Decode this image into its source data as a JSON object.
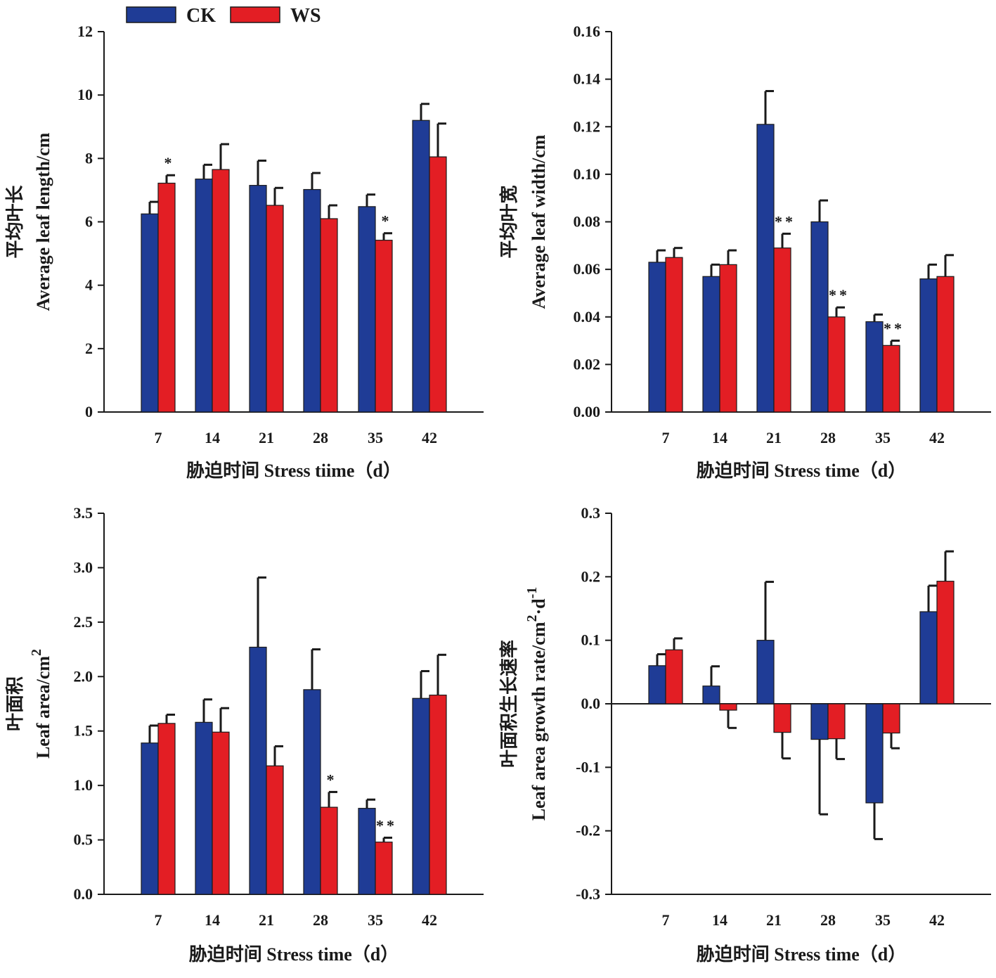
{
  "legend": {
    "items": [
      {
        "label": "CK",
        "color": "#1f3c96"
      },
      {
        "label": "WS",
        "color": "#e31e24"
      }
    ]
  },
  "colors": {
    "ck": "#1f3c96",
    "ws": "#e31e24",
    "axis": "#1a1a1a"
  },
  "chart_data": [
    {
      "type": "bar",
      "categories": [
        "7",
        "14",
        "21",
        "28",
        "35",
        "42"
      ],
      "ylabel_cn": "平均叶长",
      "ylabel_en": "Average leaf length/cm",
      "xlabel": "胁迫时间 Stress tiime（d）",
      "ylim": [
        0,
        12
      ],
      "yticks": [
        "0",
        "2",
        "4",
        "6",
        "8",
        "10",
        "12"
      ],
      "ytick_values": [
        0,
        2,
        4,
        6,
        8,
        10,
        12
      ],
      "series": [
        {
          "name": "CK",
          "values": [
            6.25,
            7.35,
            7.15,
            7.02,
            6.48,
            9.2
          ],
          "errors": [
            0.38,
            0.45,
            0.78,
            0.52,
            0.38,
            0.52
          ]
        },
        {
          "name": "WS",
          "values": [
            7.22,
            7.65,
            6.52,
            6.1,
            5.42,
            8.05
          ],
          "errors": [
            0.25,
            0.8,
            0.55,
            0.42,
            0.22,
            1.05
          ]
        }
      ],
      "significance": [
        {
          "category_index": 0,
          "series": "WS",
          "mark": "*"
        },
        {
          "category_index": 4,
          "series": "WS",
          "mark": "*"
        }
      ]
    },
    {
      "type": "bar",
      "categories": [
        "7",
        "14",
        "21",
        "28",
        "35",
        "42"
      ],
      "ylabel_cn": "平均叶宽",
      "ylabel_en": "Average leaf width/cm",
      "xlabel": "胁迫时间 Stress time（d）",
      "ylim": [
        0,
        0.16
      ],
      "yticks": [
        "0.00",
        "0.02",
        "0.04",
        "0.06",
        "0.08",
        "0.10",
        "0.12",
        "0.14",
        "0.16"
      ],
      "ytick_values": [
        0,
        0.02,
        0.04,
        0.06,
        0.08,
        0.1,
        0.12,
        0.14,
        0.16
      ],
      "series": [
        {
          "name": "CK",
          "values": [
            0.063,
            0.057,
            0.121,
            0.08,
            0.038,
            0.056
          ],
          "errors": [
            0.005,
            0.005,
            0.014,
            0.009,
            0.003,
            0.006
          ]
        },
        {
          "name": "WS",
          "values": [
            0.065,
            0.062,
            0.069,
            0.04,
            0.028,
            0.057
          ],
          "errors": [
            0.004,
            0.006,
            0.006,
            0.004,
            0.002,
            0.009
          ]
        }
      ],
      "significance": [
        {
          "category_index": 2,
          "series": "WS",
          "mark": "**"
        },
        {
          "category_index": 3,
          "series": "WS",
          "mark": "**"
        },
        {
          "category_index": 4,
          "series": "WS",
          "mark": "**"
        }
      ]
    },
    {
      "type": "bar",
      "categories": [
        "7",
        "14",
        "21",
        "28",
        "35",
        "42"
      ],
      "ylabel_cn": "叶面积",
      "ylabel_en": "Leaf area/cm",
      "ylabel_sup": "2",
      "xlabel": "胁迫时间 Stress time（d）",
      "ylim": [
        0,
        3.5
      ],
      "yticks": [
        "0.0",
        "0.5",
        "1.0",
        "1.5",
        "2.0",
        "2.5",
        "3.0",
        "3.5"
      ],
      "ytick_values": [
        0,
        0.5,
        1,
        1.5,
        2,
        2.5,
        3,
        3.5
      ],
      "series": [
        {
          "name": "CK",
          "values": [
            1.39,
            1.58,
            2.27,
            1.88,
            0.79,
            1.8
          ],
          "errors": [
            0.16,
            0.21,
            0.64,
            0.37,
            0.08,
            0.25
          ]
        },
        {
          "name": "WS",
          "values": [
            1.57,
            1.49,
            1.18,
            0.8,
            0.48,
            1.83
          ],
          "errors": [
            0.08,
            0.22,
            0.18,
            0.14,
            0.04,
            0.37
          ]
        }
      ],
      "significance": [
        {
          "category_index": 3,
          "series": "WS",
          "mark": "*"
        },
        {
          "category_index": 4,
          "series": "WS",
          "mark": "**"
        }
      ]
    },
    {
      "type": "bar",
      "categories": [
        "7",
        "14",
        "21",
        "28",
        "35",
        "42"
      ],
      "ylabel_cn": "叶面积生长速率",
      "ylabel_en": "Leaf area growth rate/cm",
      "ylabel_sup": "2",
      "ylabel_tail": "·d",
      "ylabel_tail_sup": "-1",
      "xlabel": "胁迫时间 Stress time（d）",
      "ylim": [
        -0.3,
        0.3
      ],
      "yticks": [
        "-0.3",
        "-0.2",
        "-0.1",
        "0.0",
        "0.1",
        "0.2",
        "0.3"
      ],
      "ytick_values": [
        -0.3,
        -0.2,
        -0.1,
        0,
        0.1,
        0.2,
        0.3
      ],
      "zero_line": true,
      "series": [
        {
          "name": "CK",
          "values": [
            0.06,
            0.028,
            0.1,
            -0.056,
            -0.156,
            0.145
          ],
          "errors": [
            0.018,
            0.031,
            0.092,
            0.118,
            0.057,
            0.041
          ]
        },
        {
          "name": "WS",
          "values": [
            0.085,
            -0.01,
            -0.045,
            -0.055,
            -0.046,
            0.193
          ],
          "errors": [
            0.018,
            0.028,
            0.041,
            0.032,
            0.024,
            0.047
          ]
        }
      ],
      "significance": []
    }
  ]
}
